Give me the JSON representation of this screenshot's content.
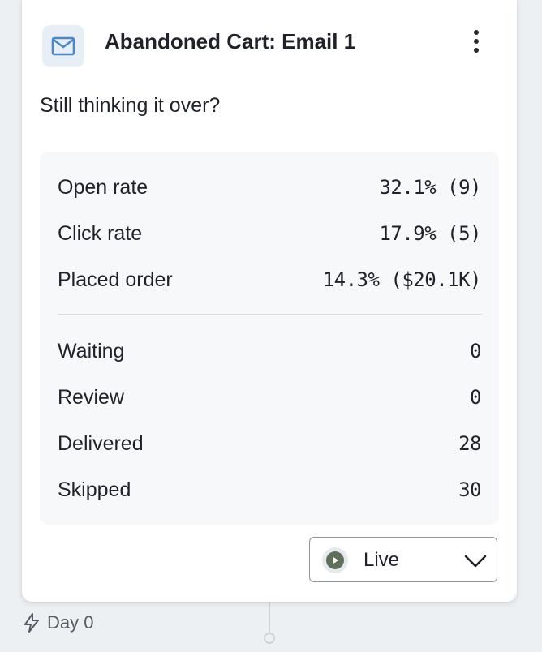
{
  "card": {
    "title": "Abandoned Cart: Email 1",
    "subject": "Still thinking it over?",
    "icon": "mail-icon",
    "menu_icon": "kebab-menu-icon"
  },
  "stats": {
    "performance": [
      {
        "label": "Open rate",
        "value": "32.1% (9)"
      },
      {
        "label": "Click rate",
        "value": "17.9% (5)"
      },
      {
        "label": "Placed order",
        "value": "14.3% ($20.1K)"
      }
    ],
    "delivery": [
      {
        "label": "Waiting",
        "value": "0"
      },
      {
        "label": "Review",
        "value": "0"
      },
      {
        "label": "Delivered",
        "value": "28"
      },
      {
        "label": "Skipped",
        "value": "30"
      }
    ]
  },
  "status": {
    "selected": "Live",
    "icon": "play-circle-icon",
    "dropdown_icon": "chevron-down-icon",
    "icon_color": "#5f6f5a"
  },
  "trigger": {
    "label": "Day 0",
    "icon": "lightning-icon"
  },
  "colors": {
    "accent": "#4b88c5",
    "card_background": "#ffffff",
    "stats_background": "#f7f8f9"
  }
}
